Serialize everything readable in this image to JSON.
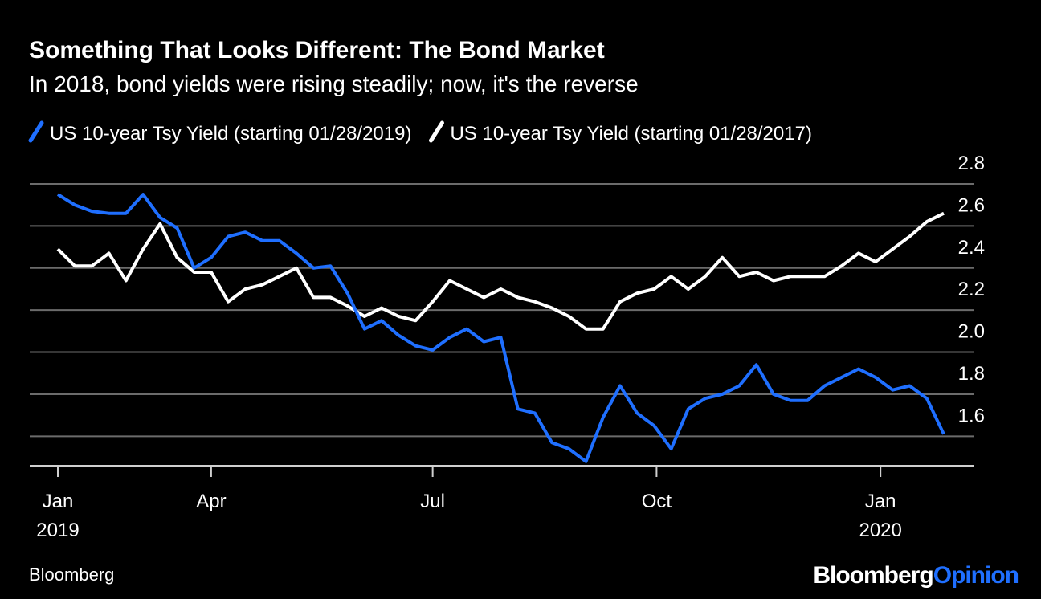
{
  "chart_data": {
    "type": "line",
    "title": "Something That Looks Different: The Bond Market",
    "subtitle": "In 2018, bond yields were rising steadily; now, it's the reverse",
    "source": "Bloomberg",
    "brand": [
      "Bloomberg",
      "Opinion"
    ],
    "x": [
      "2019-01-28",
      "2019-02-04",
      "2019-02-11",
      "2019-02-18",
      "2019-02-25",
      "2019-03-04",
      "2019-03-11",
      "2019-03-18",
      "2019-03-25",
      "2019-04-01",
      "2019-04-08",
      "2019-04-15",
      "2019-04-22",
      "2019-04-29",
      "2019-05-06",
      "2019-05-13",
      "2019-05-20",
      "2019-05-27",
      "2019-06-03",
      "2019-06-10",
      "2019-06-17",
      "2019-06-24",
      "2019-07-01",
      "2019-07-08",
      "2019-07-15",
      "2019-07-22",
      "2019-07-29",
      "2019-08-05",
      "2019-08-12",
      "2019-08-19",
      "2019-08-26",
      "2019-09-02",
      "2019-09-09",
      "2019-09-16",
      "2019-09-23",
      "2019-09-30",
      "2019-10-07",
      "2019-10-14",
      "2019-10-21",
      "2019-10-28",
      "2019-11-04",
      "2019-11-11",
      "2019-11-18",
      "2019-11-25",
      "2019-12-02",
      "2019-12-09",
      "2019-12-16",
      "2019-12-23",
      "2019-12-30",
      "2020-01-06",
      "2020-01-13",
      "2020-01-20",
      "2020-01-27"
    ],
    "series": [
      {
        "name": "US 10-year Tsy Yield (starting 01/28/2019)",
        "color": "#1f6fff",
        "values": [
          2.75,
          2.7,
          2.67,
          2.66,
          2.66,
          2.75,
          2.64,
          2.59,
          2.4,
          2.45,
          2.55,
          2.57,
          2.53,
          2.53,
          2.47,
          2.4,
          2.41,
          2.28,
          2.11,
          2.15,
          2.08,
          2.03,
          2.01,
          2.07,
          2.11,
          2.05,
          2.07,
          1.73,
          1.71,
          1.57,
          1.54,
          1.48,
          1.69,
          1.84,
          1.71,
          1.65,
          1.54,
          1.73,
          1.78,
          1.8,
          1.84,
          1.94,
          1.8,
          1.77,
          1.77,
          1.84,
          1.88,
          1.92,
          1.88,
          1.82,
          1.84,
          1.78,
          1.61
        ]
      },
      {
        "name": "US 10-year Tsy Yield (starting 01/28/2017)",
        "color": "#ffffff",
        "values": [
          2.49,
          2.41,
          2.41,
          2.47,
          2.34,
          2.49,
          2.61,
          2.45,
          2.38,
          2.38,
          2.24,
          2.3,
          2.32,
          2.36,
          2.4,
          2.26,
          2.26,
          2.22,
          2.17,
          2.21,
          2.17,
          2.15,
          2.24,
          2.34,
          2.3,
          2.26,
          2.3,
          2.26,
          2.24,
          2.21,
          2.17,
          2.11,
          2.11,
          2.24,
          2.28,
          2.3,
          2.36,
          2.3,
          2.36,
          2.45,
          2.36,
          2.38,
          2.34,
          2.36,
          2.36,
          2.36,
          2.41,
          2.47,
          2.43,
          2.49,
          2.55,
          2.62,
          2.66
        ]
      }
    ],
    "xlim": [
      "2019-01-28",
      "2020-01-28"
    ],
    "xticks": [
      {
        "value": "2019-01-28",
        "label": "Jan\n2019"
      },
      {
        "value": "2019-04-01",
        "label": "Apr"
      },
      {
        "value": "2019-07-01",
        "label": "Jul"
      },
      {
        "value": "2019-10-01",
        "label": "Oct"
      },
      {
        "value": "2020-01-01",
        "label": "Jan\n2020"
      }
    ],
    "ylim": [
      1.46,
      2.8
    ],
    "yticks": [
      1.6,
      1.8,
      {
        "value": 2,
        "label": "2.0"
      },
      2.2,
      2.4,
      2.6,
      2.8
    ],
    "grid": true
  }
}
